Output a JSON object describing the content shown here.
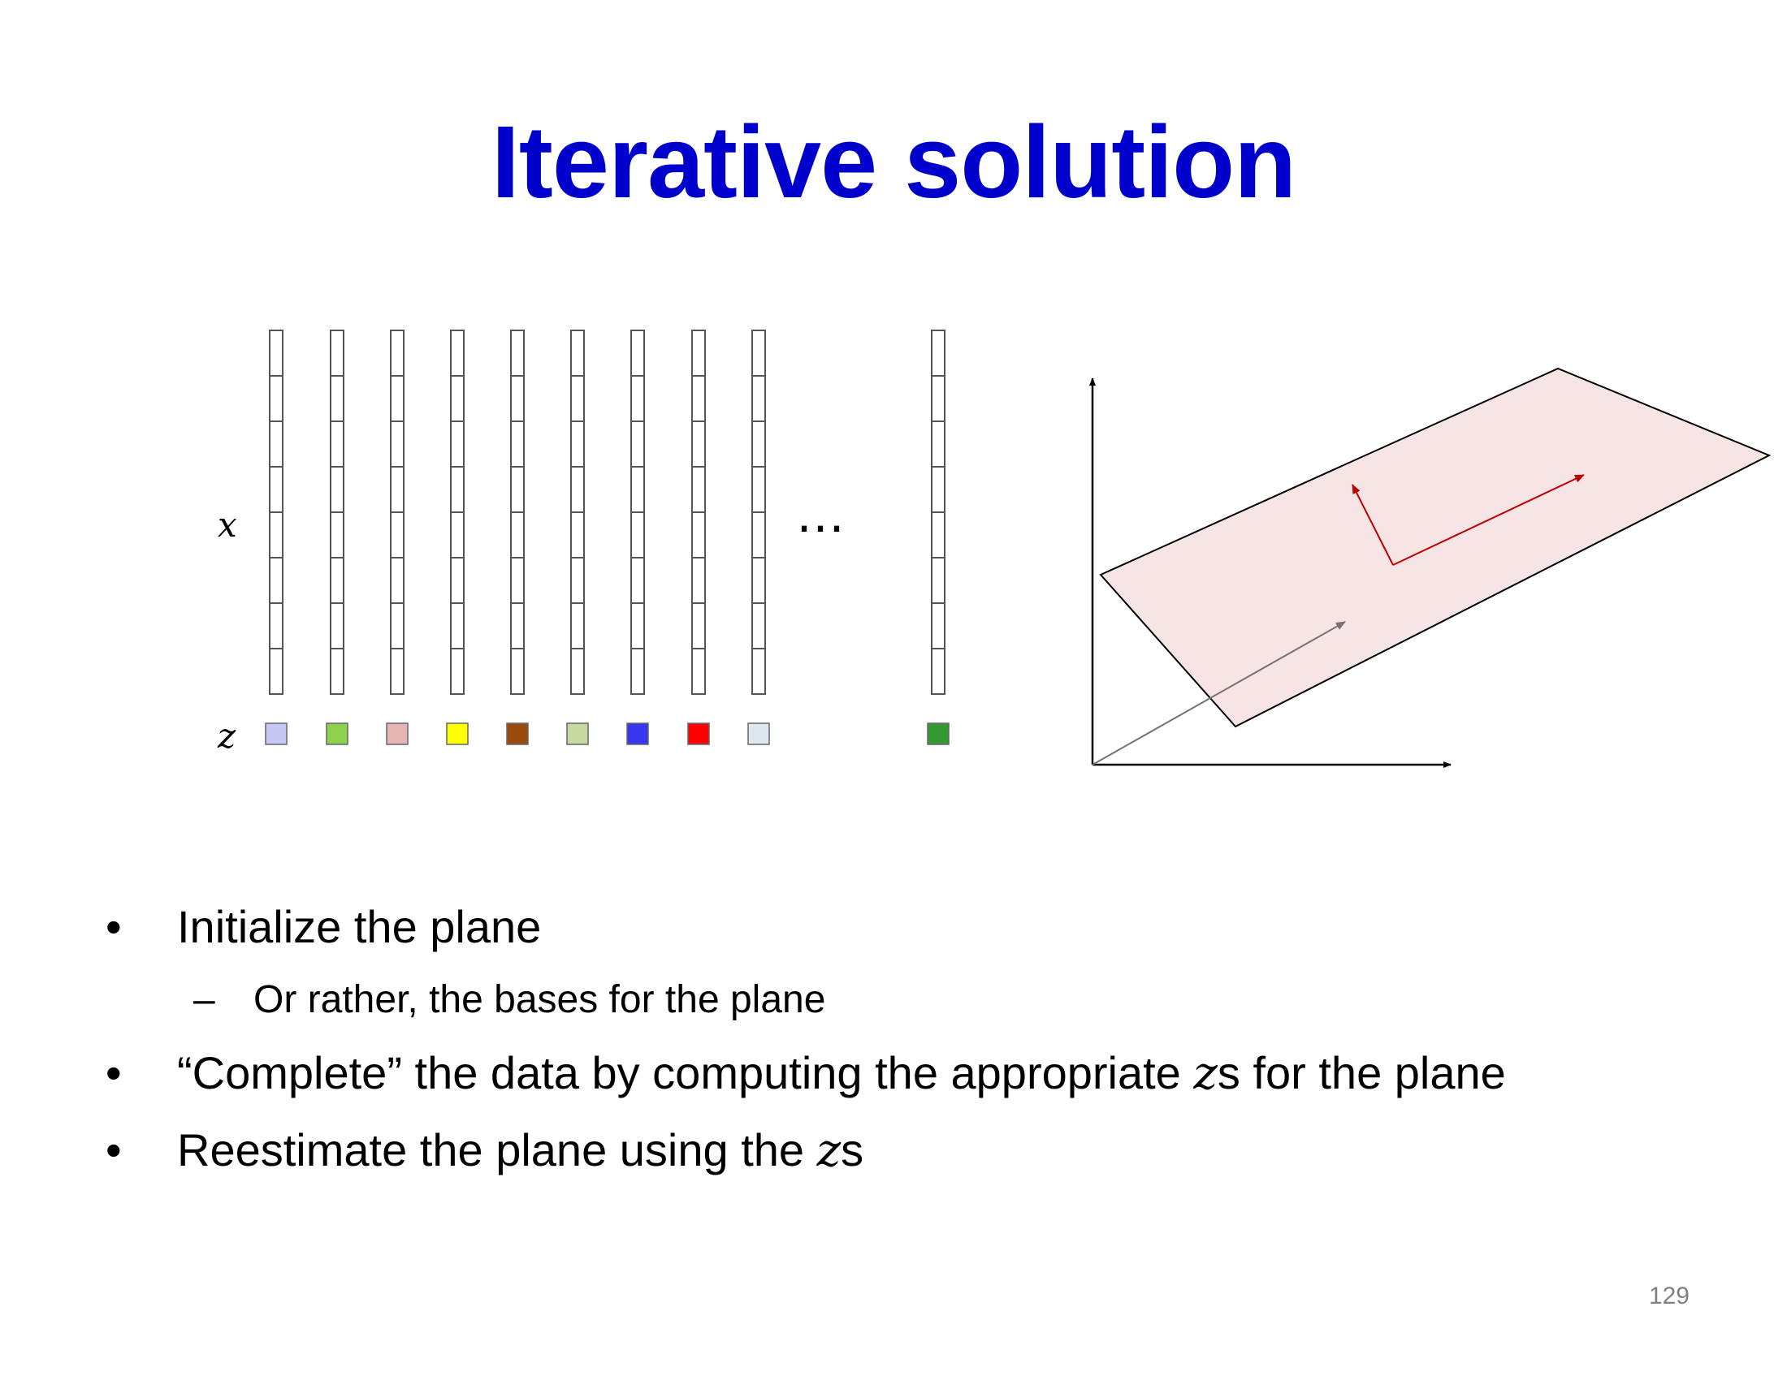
{
  "slide": {
    "title": "Iterative solution",
    "x_label": "x",
    "z_label": "z",
    "ellipsis": "…",
    "z_colors": [
      "#c6c6f5",
      "#8dd14f",
      "#e3b5b3",
      "#ffff00",
      "#994a0c",
      "#c5d9a1",
      "#3737ee",
      "#ff0000",
      "#dce7f0",
      "#339933"
    ],
    "plane_fill": "#f7e5e5",
    "basis_color": "#c00000",
    "data_vector_color": "#7a7070",
    "bullets": [
      {
        "level": 1,
        "marker": "•",
        "text": "Initialize the plane"
      },
      {
        "level": 2,
        "marker": "–",
        "text": "Or rather, the bases for the plane"
      },
      {
        "level": 1,
        "marker": "•",
        "pre": "“Complete” the data by computing the appropriate ",
        "math": "z",
        "post": "s for the plane"
      },
      {
        "level": 1,
        "marker": "•",
        "pre": "Reestimate the plane using the ",
        "math": "z",
        "post": "s"
      }
    ],
    "page_number": "129"
  }
}
